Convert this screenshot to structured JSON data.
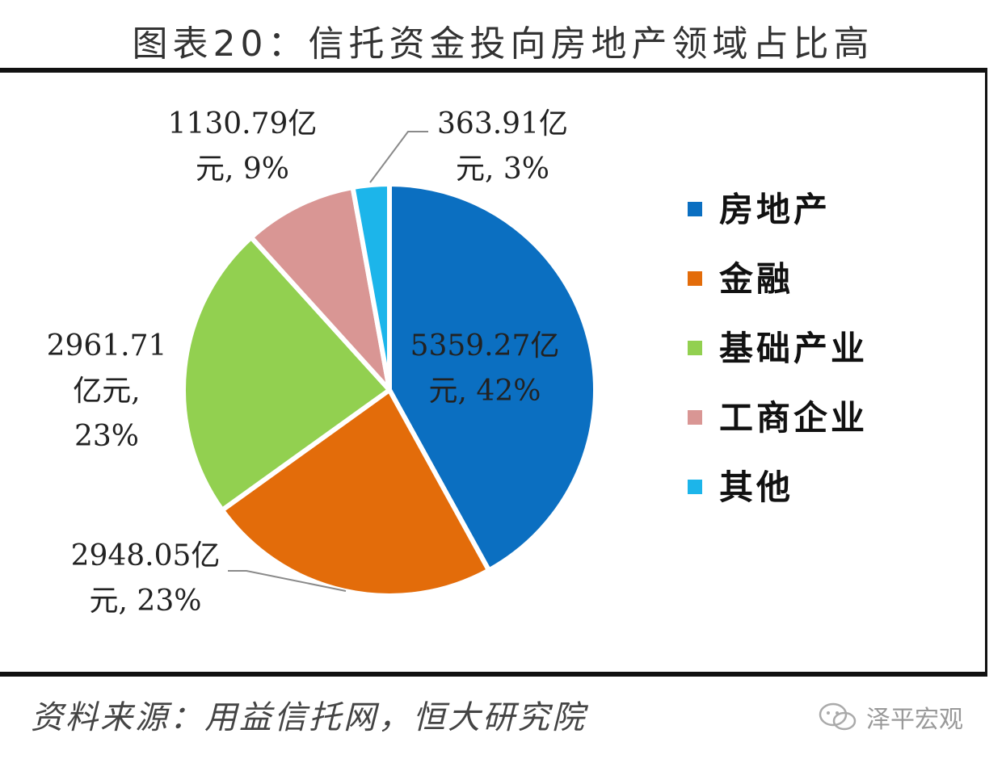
{
  "title": "图表20：信托资金投向房地产领域占比高",
  "source": "资料来源：用益信托网，恒大研究院",
  "watermark": "泽平宏观",
  "chart_data": {
    "type": "pie",
    "title": "图表20：信托资金投向房地产领域占比高",
    "unit": "亿元",
    "legend_position": "right",
    "slices": [
      {
        "name": "房地产",
        "value": 5359.27,
        "percent": 42,
        "color": "#0b6fc1",
        "label_lines": [
          "5359.27亿",
          "元, 42%"
        ]
      },
      {
        "name": "金融",
        "value": 2948.05,
        "percent": 23,
        "color": "#e36c0a",
        "label_lines": [
          "2948.05亿",
          "元, 23%"
        ]
      },
      {
        "name": "基础产业",
        "value": 2961.71,
        "percent": 23,
        "color": "#92d050",
        "label_lines": [
          "2961.71",
          "亿元,",
          "23%"
        ]
      },
      {
        "name": "工商企业",
        "value": 1130.79,
        "percent": 9,
        "color": "#d99694",
        "label_lines": [
          "1130.79亿",
          "元, 9%"
        ]
      },
      {
        "name": "其他",
        "value": 363.91,
        "percent": 3,
        "color": "#1cb5ea",
        "label_lines": [
          "363.91亿",
          "元, 3%"
        ]
      }
    ]
  }
}
